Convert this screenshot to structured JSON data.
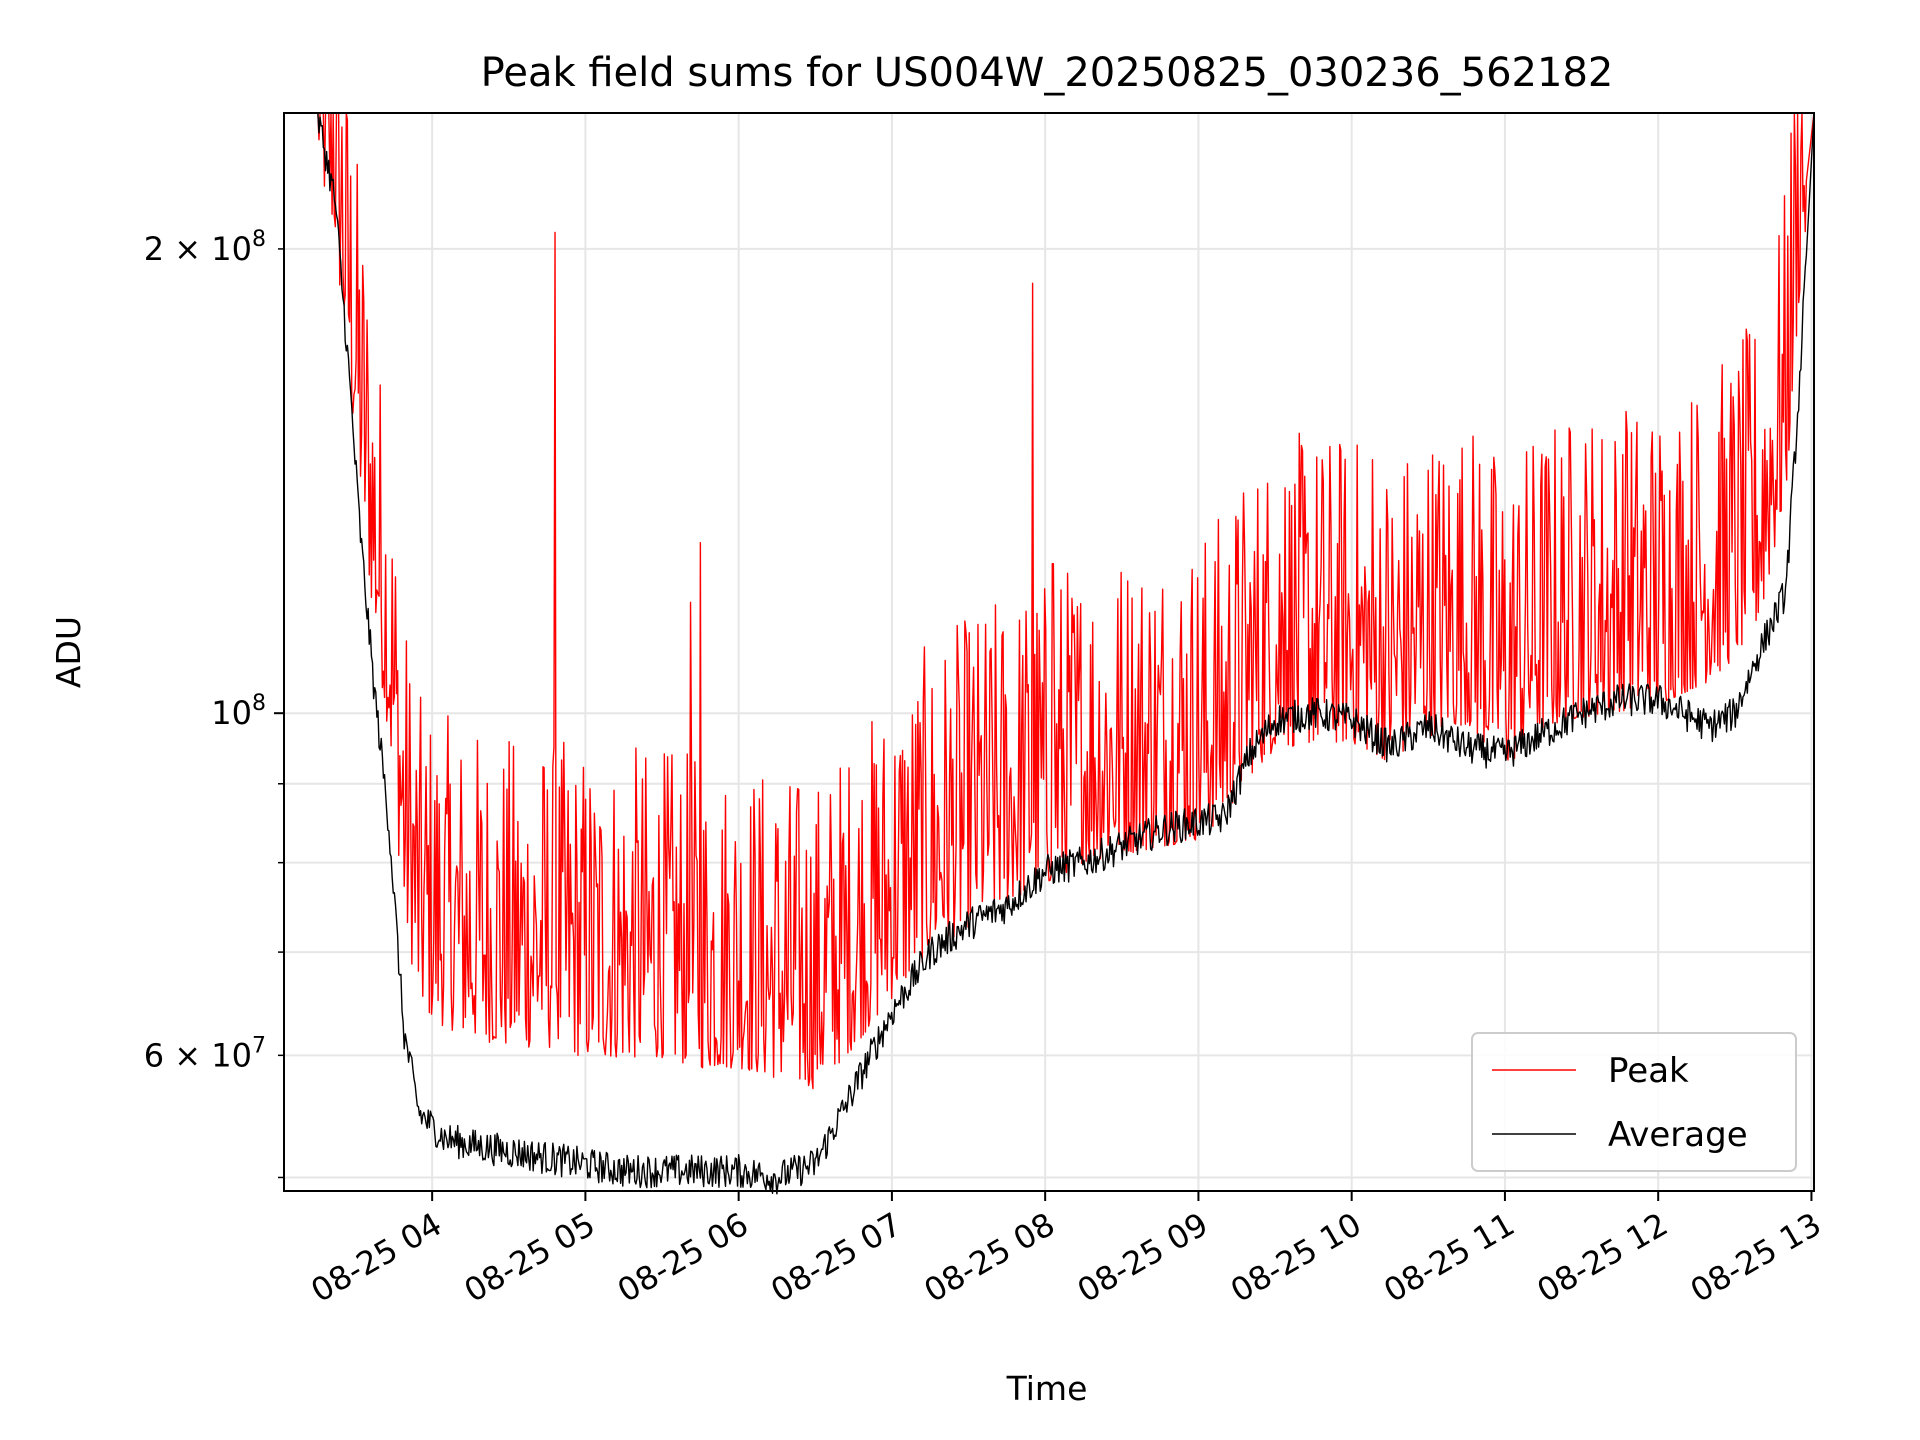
{
  "chart_data": {
    "type": "line",
    "title": "Peak field sums for US004W_20250825_030236_562182",
    "xlabel": "Time",
    "ylabel": "ADU",
    "y_scale": "log",
    "ylim": [
      49000000,
      245000000
    ],
    "xlim": [
      "2025-08-25 03:02",
      "2025-08-25 13:01"
    ],
    "x_ticks": [
      "08-25 04",
      "08-25 05",
      "08-25 06",
      "08-25 07",
      "08-25 08",
      "08-25 09",
      "08-25 10",
      "08-25 11",
      "08-25 12",
      "08-25 13"
    ],
    "y_ticks_major": [
      "10^8"
    ],
    "y_ticks_minor": [
      "6×10^7",
      "2×10^8"
    ],
    "grid": true,
    "legend_position": "lower right",
    "colors": {
      "Peak": "#ff0000",
      "Average": "#000000"
    },
    "series": [
      {
        "name": "Peak",
        "x": [
          "2025-08-25 03:02",
          "2025-08-25 03:15",
          "2025-08-25 03:22",
          "2025-08-25 03:27",
          "2025-08-25 03:32",
          "2025-08-25 03:37",
          "2025-08-25 03:43",
          "2025-08-25 03:49",
          "2025-08-25 03:55",
          "2025-08-25 04:05",
          "2025-08-25 04:15",
          "2025-08-25 04:30",
          "2025-08-25 04:45",
          "2025-08-25 05:00",
          "2025-08-25 05:15",
          "2025-08-25 05:30",
          "2025-08-25 05:45",
          "2025-08-25 06:00",
          "2025-08-25 06:15",
          "2025-08-25 06:30",
          "2025-08-25 06:45",
          "2025-08-25 07:00",
          "2025-08-25 07:15",
          "2025-08-25 07:30",
          "2025-08-25 07:45",
          "2025-08-25 08:00",
          "2025-08-25 08:15",
          "2025-08-25 08:30",
          "2025-08-25 08:45",
          "2025-08-25 09:00",
          "2025-08-25 09:10",
          "2025-08-25 09:20",
          "2025-08-25 09:30",
          "2025-08-25 09:45",
          "2025-08-25 10:00",
          "2025-08-25 10:15",
          "2025-08-25 10:30",
          "2025-08-25 10:45",
          "2025-08-25 11:00",
          "2025-08-25 11:15",
          "2025-08-25 11:30",
          "2025-08-25 11:45",
          "2025-08-25 12:00",
          "2025-08-25 12:10",
          "2025-08-25 12:20",
          "2025-08-25 12:30",
          "2025-08-25 12:40",
          "2025-08-25 12:50",
          "2025-08-25 12:55",
          "2025-08-25 13:01"
        ],
        "y": [
          245000000,
          245000000,
          220000000,
          180000000,
          150000000,
          125000000,
          105000000,
          80000000,
          70000000,
          68000000,
          67000000,
          66000000,
          66000000,
          65000000,
          65000000,
          65000000,
          64000000,
          64000000,
          63000000,
          62000000,
          66000000,
          71000000,
          76000000,
          79000000,
          82000000,
          84000000,
          87000000,
          88000000,
          89000000,
          90000000,
          93000000,
          99000000,
          103000000,
          104000000,
          104000000,
          101000000,
          105000000,
          107000000,
          100000000,
          106000000,
          108000000,
          109000000,
          110000000,
          112000000,
          114000000,
          118000000,
          125000000,
          150000000,
          200000000,
          245000000
        ]
      },
      {
        "name": "Average",
        "x": [
          "2025-08-25 03:02",
          "2025-08-25 03:15",
          "2025-08-25 03:22",
          "2025-08-25 03:27",
          "2025-08-25 03:32",
          "2025-08-25 03:37",
          "2025-08-25 03:43",
          "2025-08-25 03:49",
          "2025-08-25 03:55",
          "2025-08-25 04:05",
          "2025-08-25 04:15",
          "2025-08-25 04:30",
          "2025-08-25 04:45",
          "2025-08-25 05:00",
          "2025-08-25 05:15",
          "2025-08-25 05:30",
          "2025-08-25 05:45",
          "2025-08-25 06:00",
          "2025-08-25 06:15",
          "2025-08-25 06:30",
          "2025-08-25 06:45",
          "2025-08-25 07:00",
          "2025-08-25 07:15",
          "2025-08-25 07:30",
          "2025-08-25 07:45",
          "2025-08-25 08:00",
          "2025-08-25 08:15",
          "2025-08-25 08:30",
          "2025-08-25 08:45",
          "2025-08-25 09:00",
          "2025-08-25 09:10",
          "2025-08-25 09:20",
          "2025-08-25 09:30",
          "2025-08-25 09:45",
          "2025-08-25 10:00",
          "2025-08-25 10:15",
          "2025-08-25 10:30",
          "2025-08-25 10:45",
          "2025-08-25 11:00",
          "2025-08-25 11:15",
          "2025-08-25 11:30",
          "2025-08-25 11:45",
          "2025-08-25 12:00",
          "2025-08-25 12:10",
          "2025-08-25 12:20",
          "2025-08-25 12:30",
          "2025-08-25 12:40",
          "2025-08-25 12:50",
          "2025-08-25 12:55",
          "2025-08-25 13:01"
        ],
        "y": [
          245000000,
          245000000,
          215000000,
          170000000,
          130000000,
          105000000,
          85000000,
          62000000,
          55000000,
          53000000,
          52500000,
          52000000,
          51500000,
          51000000,
          50500000,
          50500000,
          50500000,
          50500000,
          50000000,
          51000000,
          57000000,
          64000000,
          70000000,
          73000000,
          75000000,
          79000000,
          80000000,
          82000000,
          84000000,
          85000000,
          85500000,
          94000000,
          99000000,
          100000000,
          99000000,
          95000000,
          98000000,
          95000000,
          94000000,
          97000000,
          100000000,
          102000000,
          102000000,
          100000000,
          98000000,
          100000000,
          110000000,
          120000000,
          160000000,
          245000000
        ]
      }
    ],
    "annotations": [
      {
        "x": "2025-08-25 04:48",
        "y": 205000000
      },
      {
        "x": "2025-08-25 07:55",
        "y": 190000000
      },
      {
        "x": "2025-08-25 05:45",
        "y": 129000000
      },
      {
        "x": "2025-08-25 05:41",
        "y": 118000000
      },
      {
        "x": "2025-08-25 08:03",
        "y": 125000000
      },
      {
        "x": "2025-08-25 11:48",
        "y": 152000000
      },
      {
        "x": "2025-08-25 10:50",
        "y": 145000000
      },
      {
        "x": "2025-08-25 10:08",
        "y": 146000000
      },
      {
        "x": "2025-08-25 09:34",
        "y": 140000000
      }
    ],
    "legend": [
      "Peak",
      "Average"
    ]
  }
}
